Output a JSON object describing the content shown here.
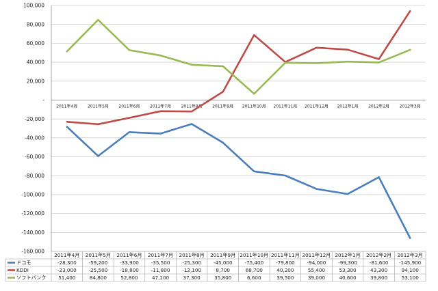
{
  "chart_data": {
    "type": "line",
    "title": "",
    "xlabel": "",
    "ylabel": "",
    "ylim": [
      -160000,
      100000
    ],
    "ytick_step": 20000,
    "grid": true,
    "legend": "data-table-bottom",
    "categories": [
      "2011年4月",
      "2011年5月",
      "2011年6月",
      "2011年7月",
      "2011年8月",
      "2011年9月",
      "2011年10月",
      "2011年11月",
      "2011年12月",
      "2012年1月",
      "2012年2月",
      "2012年3月"
    ],
    "ytick_labels": [
      "100,000",
      "80,000",
      "60,000",
      "40,000",
      "20,000",
      "-",
      "-20,000",
      "-40,000",
      "-60,000",
      "-80,000",
      "-100,000",
      "-120,000",
      "-140,000",
      "-160,000"
    ],
    "series": [
      {
        "name": "ドコモ",
        "color": "#4a7ebb",
        "values": [
          -28300,
          -59200,
          -33900,
          -35500,
          -25300,
          -45000,
          -75400,
          -79800,
          -94000,
          -99300,
          -81600,
          -145900
        ],
        "labels": [
          "-28,300",
          "-59,200",
          "-33,900",
          "-35,500",
          "-25,300",
          "-45,000",
          "-75,400",
          "-79,800",
          "-94,000",
          "-99,300",
          "-81,600",
          "-145,900"
        ]
      },
      {
        "name": "KDDI",
        "color": "#be4b48",
        "values": [
          -23000,
          -25500,
          -18800,
          -11800,
          -12100,
          8700,
          68700,
          40200,
          55400,
          53300,
          43300,
          94100
        ],
        "labels": [
          "-23,000",
          "-25,500",
          "-18,800",
          "-11,800",
          "-12,100",
          "8,700",
          "68,700",
          "40,200",
          "55,400",
          "53,300",
          "43,300",
          "94,100"
        ]
      },
      {
        "name": "ソフトバンク",
        "color": "#98b954",
        "values": [
          51400,
          84800,
          52800,
          47100,
          37300,
          35800,
          6600,
          39500,
          39000,
          40600,
          39800,
          53100
        ],
        "labels": [
          "51,400",
          "84,800",
          "52,800",
          "47,100",
          "37,300",
          "35,800",
          "6,600",
          "39,500",
          "39,000",
          "40,600",
          "39,800",
          "53,100"
        ]
      }
    ]
  }
}
